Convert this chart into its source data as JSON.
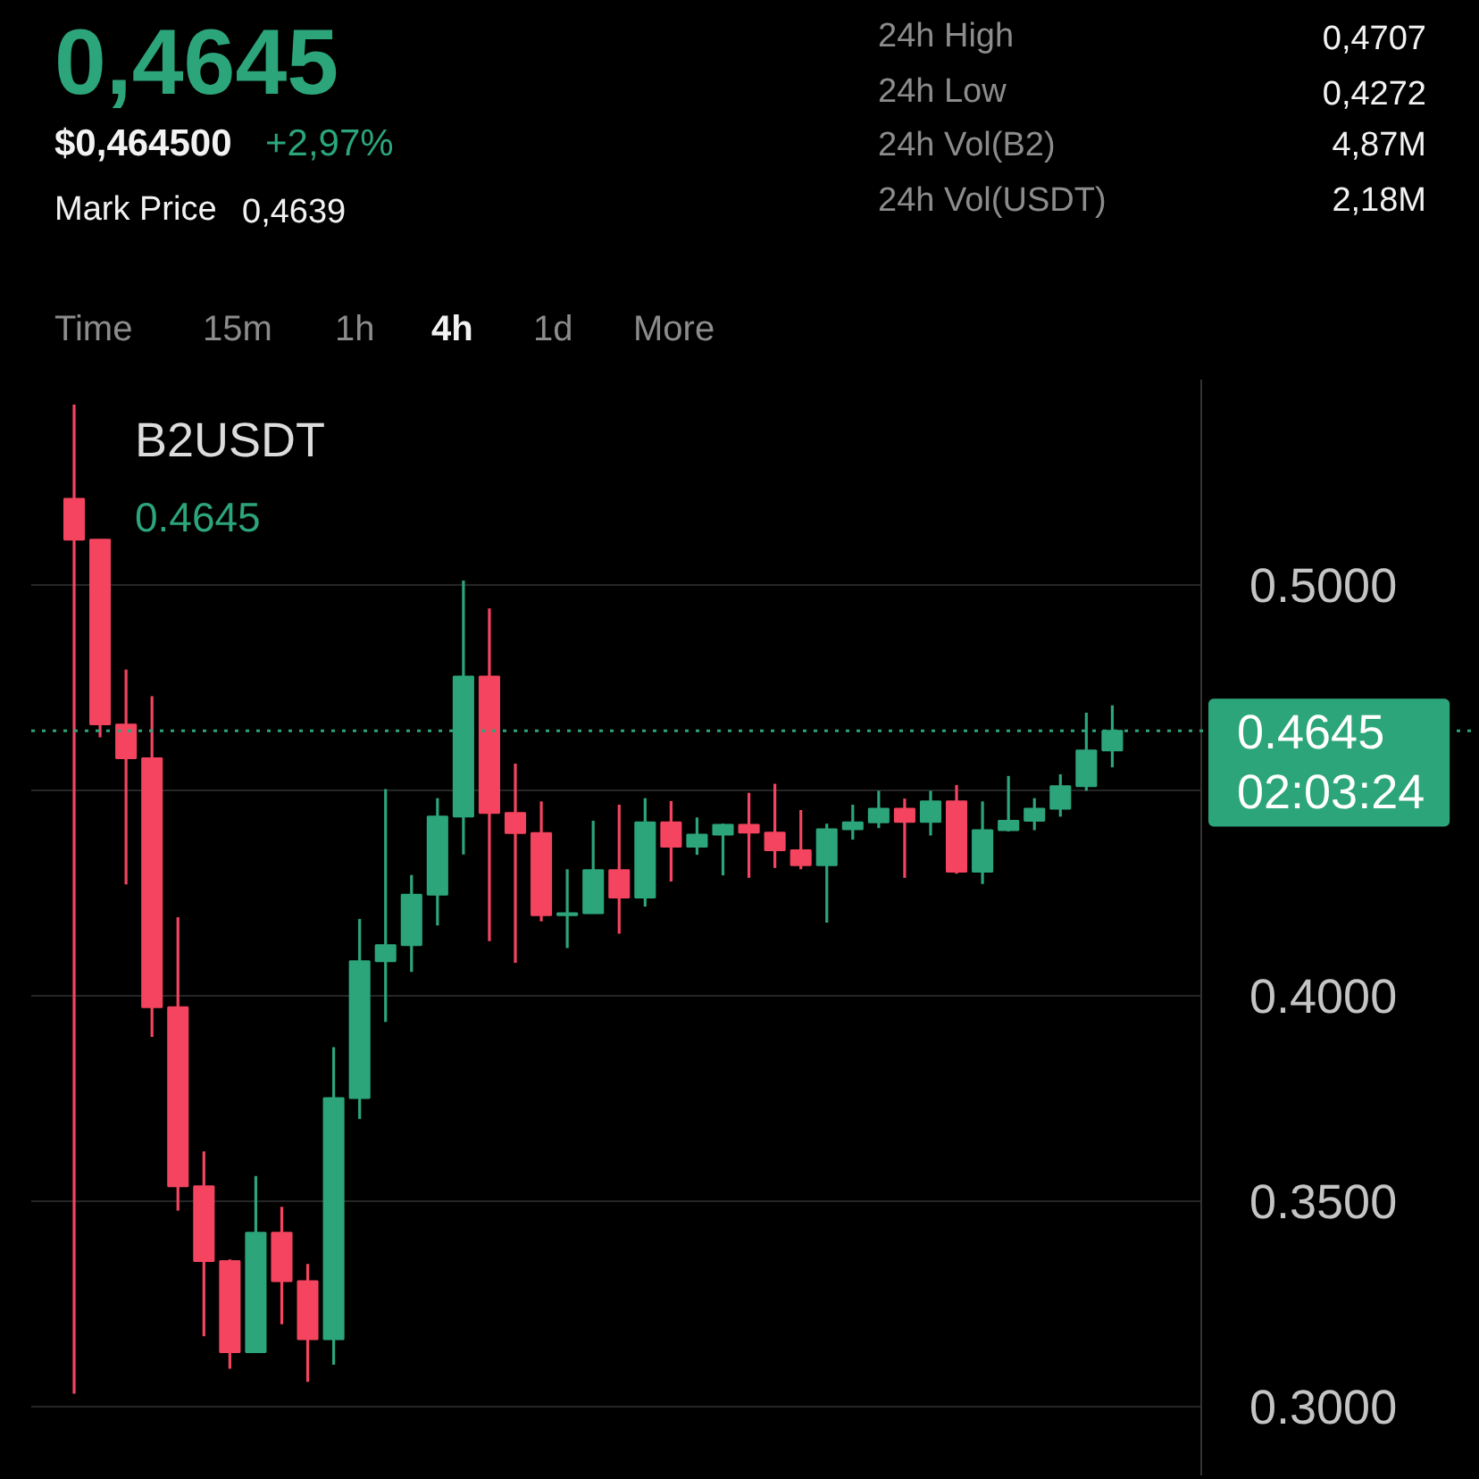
{
  "chart_data": {
    "type": "candlestick",
    "title": "B2USDT",
    "categories": [
      null,
      null,
      null,
      null,
      null,
      null,
      null,
      null,
      null,
      null,
      null,
      null,
      null,
      null,
      null,
      null,
      null,
      null,
      null,
      null,
      null,
      null,
      null,
      null,
      null,
      null,
      null,
      null,
      null,
      null,
      null,
      null,
      null,
      null,
      null,
      null,
      null,
      null,
      null,
      null,
      null
    ],
    "ohlc": [
      [
        0.521,
        0.5439,
        0.3031,
        0.511
      ],
      [
        0.511,
        0.511,
        0.4629,
        0.4661
      ],
      [
        0.466,
        0.4794,
        0.4271,
        0.4578
      ],
      [
        0.4578,
        0.4729,
        0.39,
        0.3972
      ],
      [
        0.3972,
        0.4191,
        0.3477,
        0.3536
      ],
      [
        0.3536,
        0.3621,
        0.3171,
        0.3354
      ],
      [
        0.3354,
        0.3358,
        0.3092,
        0.3132
      ],
      [
        0.3132,
        0.3561,
        0.3132,
        0.3423
      ],
      [
        0.3423,
        0.3486,
        0.32,
        0.3305
      ],
      [
        0.3305,
        0.3347,
        0.306,
        0.3164
      ],
      [
        0.3164,
        0.3875,
        0.3102,
        0.3751
      ],
      [
        0.3751,
        0.4187,
        0.37,
        0.4084
      ],
      [
        0.4084,
        0.4503,
        0.3936,
        0.4123
      ],
      [
        0.4123,
        0.4294,
        0.4058,
        0.4246
      ],
      [
        0.4246,
        0.4481,
        0.4171,
        0.4436
      ],
      [
        0.4436,
        0.5011,
        0.4344,
        0.4777
      ],
      [
        0.4777,
        0.4943,
        0.4133,
        0.4445
      ],
      [
        0.4445,
        0.4565,
        0.408,
        0.4396
      ],
      [
        0.4396,
        0.4473,
        0.4181,
        0.4196
      ],
      [
        0.4196,
        0.4308,
        0.4116,
        0.4201
      ],
      [
        0.4201,
        0.4426,
        0.4201,
        0.4306
      ],
      [
        0.4306,
        0.4465,
        0.4151,
        0.4239
      ],
      [
        0.4239,
        0.4481,
        0.4217,
        0.4422
      ],
      [
        0.4422,
        0.4474,
        0.4278,
        0.4363
      ],
      [
        0.4363,
        0.4434,
        0.4343,
        0.4392
      ],
      [
        0.4392,
        0.4419,
        0.4293,
        0.4416
      ],
      [
        0.4416,
        0.4494,
        0.4287,
        0.4397
      ],
      [
        0.4397,
        0.4516,
        0.4311,
        0.4354
      ],
      [
        0.4354,
        0.4452,
        0.4308,
        0.4318
      ],
      [
        0.4318,
        0.4419,
        0.4178,
        0.4405
      ],
      [
        0.4405,
        0.4465,
        0.438,
        0.4422
      ],
      [
        0.4422,
        0.4499,
        0.4408,
        0.4455
      ],
      [
        0.4455,
        0.448,
        0.4287,
        0.4423
      ],
      [
        0.4423,
        0.4499,
        0.439,
        0.4473
      ],
      [
        0.4473,
        0.4513,
        0.4297,
        0.4302
      ],
      [
        0.4302,
        0.4473,
        0.4272,
        0.4403
      ],
      [
        0.4403,
        0.4535,
        0.44,
        0.4426
      ],
      [
        0.4426,
        0.4481,
        0.4403,
        0.4455
      ],
      [
        0.4455,
        0.4539,
        0.4436,
        0.451
      ],
      [
        0.451,
        0.4689,
        0.4499,
        0.4597
      ],
      [
        0.4597,
        0.4707,
        0.4556,
        0.4645
      ]
    ],
    "colors": [
      "#f4445f",
      "#f4445f",
      "#f4445f",
      "#f4445f",
      "#f4445f",
      "#f4445f",
      "#f4445f",
      "#2ca57a",
      "#f4445f",
      "#f4445f",
      "#2ca57a",
      "#2ca57a",
      "#2ca57a",
      "#2ca57a",
      "#2ca57a",
      "#2ca57a",
      "#f4445f",
      "#f4445f",
      "#f4445f",
      "#2ca57a",
      "#2ca57a",
      "#f4445f",
      "#2ca57a",
      "#f4445f",
      "#2ca57a",
      "#2ca57a",
      "#f4445f",
      "#f4445f",
      "#f4445f",
      "#2ca57a",
      "#2ca57a",
      "#2ca57a",
      "#f4445f",
      "#2ca57a",
      "#f4445f",
      "#2ca57a",
      "#2ca57a",
      "#2ca57a",
      "#2ca57a",
      "#2ca57a",
      "#2ca57a"
    ],
    "ylim": [
      0.283,
      0.55
    ],
    "yticks": [
      {
        "value": 0.5,
        "label": "0.5000"
      },
      {
        "value": 0.45,
        "label": null
      },
      {
        "value": 0.4,
        "label": "0.4000"
      },
      {
        "value": 0.35,
        "label": "0.3500"
      },
      {
        "value": 0.3,
        "label": "0.3000"
      }
    ],
    "grid": "y",
    "tick_labels": "y",
    "ref_lines": [
      {
        "axis": "y",
        "value": 0.4645,
        "label": "0.4645\n02:03:24",
        "color": "#2ca57a",
        "line_style": "dotted"
      }
    ],
    "annotations": [
      "0,4645",
      "$0,464500",
      "+2,97%",
      "Mark Price",
      "0,4639",
      "24h High",
      "0,4707",
      "24h Low",
      "0,4272",
      "24h Vol(B2)",
      "4,87M",
      "24h Vol(USDT)",
      "2,18M",
      "Time",
      "15m",
      "1h",
      "4h",
      "1d",
      "More",
      "0.4645"
    ]
  }
}
